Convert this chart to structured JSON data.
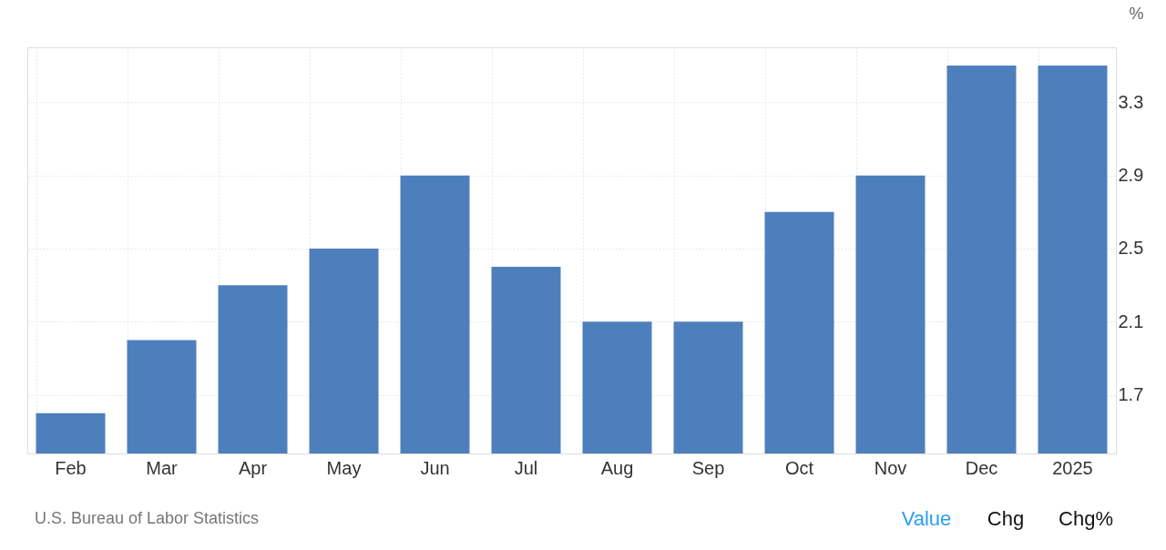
{
  "chart_data": {
    "type": "bar",
    "ylabel": "%",
    "categories": [
      "Feb",
      "Mar",
      "Apr",
      "May",
      "Jun",
      "Jul",
      "Aug",
      "Sep",
      "Oct",
      "Nov",
      "Dec",
      "2025"
    ],
    "values": [
      1.6,
      2.0,
      2.3,
      2.5,
      2.9,
      2.4,
      2.1,
      2.1,
      2.7,
      2.9,
      3.5,
      3.5
    ],
    "color": "#4e7fbd",
    "ylim": [
      1.38,
      3.6
    ],
    "yticks": [
      1.7,
      2.1,
      2.5,
      2.9,
      3.3
    ],
    "grid": true,
    "annotations": [
      "U.S. Bureau of Labor Statistics",
      "Value",
      "Chg",
      "Chg%"
    ]
  }
}
